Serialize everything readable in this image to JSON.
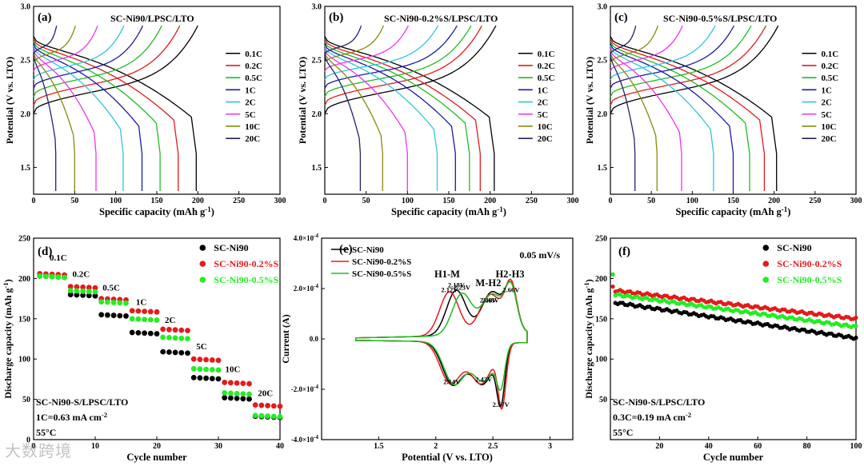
{
  "watermark": "大数跨境",
  "chart_data": [
    {
      "type": "line",
      "panel": "(a)",
      "title": "SC-Ni90/LPSC/LTO",
      "xlabel": "Specific capacity (mAh g-1)",
      "ylabel": "Potential (V vs. LTO)",
      "xlim": [
        0,
        300
      ],
      "ylim": [
        1.25,
        3.0
      ],
      "xticks": [
        0,
        50,
        100,
        150,
        200,
        250,
        300
      ],
      "yticks": [
        1.5,
        2.0,
        2.5,
        3.0
      ],
      "legend_position": "right",
      "series": [
        {
          "name": "0.1C",
          "color": "#000000",
          "charge_capacity": 200,
          "discharge_capacity": 198
        },
        {
          "name": "0.2C",
          "color": "#e41a1c",
          "charge_capacity": 178,
          "discharge_capacity": 176
        },
        {
          "name": "0.5C",
          "color": "#22bb22",
          "charge_capacity": 156,
          "discharge_capacity": 154
        },
        {
          "name": "1C",
          "color": "#1a1aa6",
          "charge_capacity": 133,
          "discharge_capacity": 132
        },
        {
          "name": "2C",
          "color": "#33c4dd",
          "charge_capacity": 110,
          "discharge_capacity": 109
        },
        {
          "name": "5C",
          "color": "#ee33ee",
          "charge_capacity": 78,
          "discharge_capacity": 76
        },
        {
          "name": "10C",
          "color": "#888811",
          "charge_capacity": 51,
          "discharge_capacity": 50
        },
        {
          "name": "20C",
          "color": "#22226b",
          "charge_capacity": 28,
          "discharge_capacity": 27
        }
      ]
    },
    {
      "type": "line",
      "panel": "(b)",
      "title": "SC-Ni90-0.2%S/LPSC/LTO",
      "xlabel": "Specific capacity (mAh g-1)",
      "ylabel": "Potential (V vs. LTO)",
      "xlim": [
        0,
        300
      ],
      "ylim": [
        1.25,
        3.0
      ],
      "xticks": [
        0,
        50,
        100,
        150,
        200,
        250,
        300
      ],
      "yticks": [
        1.5,
        2.0,
        2.5,
        3.0
      ],
      "legend_position": "right",
      "series": [
        {
          "name": "0.1C",
          "color": "#000000",
          "charge_capacity": 207,
          "discharge_capacity": 205
        },
        {
          "name": "0.2C",
          "color": "#e41a1c",
          "charge_capacity": 190,
          "discharge_capacity": 188
        },
        {
          "name": "0.5C",
          "color": "#22bb22",
          "charge_capacity": 177,
          "discharge_capacity": 175
        },
        {
          "name": "1C",
          "color": "#1a1aa6",
          "charge_capacity": 160,
          "discharge_capacity": 158
        },
        {
          "name": "2C",
          "color": "#33c4dd",
          "charge_capacity": 137,
          "discharge_capacity": 136
        },
        {
          "name": "5C",
          "color": "#ee33ee",
          "charge_capacity": 101,
          "discharge_capacity": 100
        },
        {
          "name": "10C",
          "color": "#888811",
          "charge_capacity": 71,
          "discharge_capacity": 70
        },
        {
          "name": "20C",
          "color": "#22226b",
          "charge_capacity": 44,
          "discharge_capacity": 43
        }
      ]
    },
    {
      "type": "line",
      "panel": "(c)",
      "title": "SC-Ni90-0.5%S/LPSC/LTO",
      "xlabel": "Specific capacity (mAh g-1)",
      "ylabel": "Potential (V vs. LTO)",
      "xlim": [
        0,
        300
      ],
      "ylim": [
        1.25,
        3.0
      ],
      "xticks": [
        0,
        50,
        100,
        150,
        200,
        250,
        300
      ],
      "yticks": [
        1.5,
        2.0,
        2.5,
        3.0
      ],
      "legend_position": "right",
      "series": [
        {
          "name": "0.1C",
          "color": "#000000",
          "charge_capacity": 205,
          "discharge_capacity": 203
        },
        {
          "name": "0.2C",
          "color": "#e41a1c",
          "charge_capacity": 190,
          "discharge_capacity": 188
        },
        {
          "name": "0.5C",
          "color": "#22bb22",
          "charge_capacity": 172,
          "discharge_capacity": 170
        },
        {
          "name": "1C",
          "color": "#1a1aa6",
          "charge_capacity": 151,
          "discharge_capacity": 150
        },
        {
          "name": "2C",
          "color": "#33c4dd",
          "charge_capacity": 128,
          "discharge_capacity": 126
        },
        {
          "name": "5C",
          "color": "#ee33ee",
          "charge_capacity": 88,
          "discharge_capacity": 87
        },
        {
          "name": "10C",
          "color": "#888811",
          "charge_capacity": 58,
          "discharge_capacity": 57
        },
        {
          "name": "20C",
          "color": "#22226b",
          "charge_capacity": 31,
          "discharge_capacity": 30
        }
      ]
    },
    {
      "type": "scatter",
      "panel": "(d)",
      "xlabel": "Cycle number",
      "ylabel": "Discharge capacity (mAh g-1)",
      "xlim": [
        0,
        40
      ],
      "ylim": [
        0,
        250
      ],
      "xticks": [
        0,
        10,
        20,
        30,
        40
      ],
      "yticks": [
        0,
        50,
        100,
        150,
        200,
        250
      ],
      "legend_position": "top-right",
      "rate_labels": [
        {
          "text": "0.1C",
          "x": 2.6,
          "y": 222
        },
        {
          "text": "0.2C",
          "x": 6.3,
          "y": 202
        },
        {
          "text": "0.5C",
          "x": 11.2,
          "y": 185
        },
        {
          "text": "1C",
          "x": 16.6,
          "y": 167
        },
        {
          "text": "2C",
          "x": 21.3,
          "y": 145
        },
        {
          "text": "5C",
          "x": 26.4,
          "y": 112
        },
        {
          "text": "10C",
          "x": 31.1,
          "y": 84
        },
        {
          "text": "20C",
          "x": 36.4,
          "y": 54
        }
      ],
      "annotation": [
        "SC-Ni90-S/LPSC/LTO",
        "1C=0.63 mA cm-2",
        "55°C"
      ],
      "series": [
        {
          "name": "SC-Ni90",
          "color": "#000000",
          "marker": "circle",
          "steps": [
            [
              1,
              5,
              203
            ],
            [
              6,
              10,
              180
            ],
            [
              11,
              15,
              155
            ],
            [
              16,
              20,
              133
            ],
            [
              21,
              25,
              109
            ],
            [
              26,
              30,
              77
            ],
            [
              31,
              35,
              52
            ],
            [
              36,
              40,
              29
            ]
          ]
        },
        {
          "name": "SC-Ni90-0.2%S",
          "color": "#e41a1c",
          "marker": "circle",
          "steps": [
            [
              1,
              5,
              206
            ],
            [
              6,
              10,
              190
            ],
            [
              11,
              15,
              175
            ],
            [
              16,
              20,
              160
            ],
            [
              21,
              25,
              137
            ],
            [
              26,
              30,
              100
            ],
            [
              31,
              35,
              71
            ],
            [
              36,
              40,
              43
            ]
          ]
        },
        {
          "name": "SC-Ni90-0.5%S",
          "color": "#22ee22",
          "marker": "circle",
          "steps": [
            [
              1,
              5,
              203
            ],
            [
              6,
              10,
              185
            ],
            [
              11,
              15,
              171
            ],
            [
              16,
              20,
              150
            ],
            [
              21,
              25,
              127
            ],
            [
              26,
              30,
              88
            ],
            [
              31,
              35,
              58
            ],
            [
              36,
              40,
              30
            ]
          ]
        }
      ]
    },
    {
      "type": "line",
      "panel": "(e)",
      "xlabel": "Potential (V vs. LTO)",
      "ylabel": "Current (A)",
      "xlim": [
        1.0,
        3.2
      ],
      "ylim": [
        -0.0004,
        0.0004
      ],
      "xticks": [
        1.5,
        2.0,
        2.5,
        3.0
      ],
      "yticks": [
        -0.0004,
        -0.0002,
        0.0,
        0.0002,
        0.0004
      ],
      "ytick_labels": [
        "-4.0x10-4",
        "-2.0x10-4",
        "0.0",
        "2.0x10-4",
        "4.0x10-4"
      ],
      "scan_rate": "0.05 mV/s",
      "legend_position": "top-left",
      "phase_labels": [
        {
          "text": "H1-M",
          "x": 2.1,
          "y": 0.000245
        },
        {
          "text": "M-H2",
          "x": 2.46,
          "y": 0.00021
        },
        {
          "text": "H2-H3",
          "x": 2.65,
          "y": 0.000245
        }
      ],
      "peak_labels": [
        {
          "text": "2.12V",
          "x": 2.12,
          "y": 0.000185
        },
        {
          "text": "2.18V",
          "x": 2.18,
          "y": 0.000205
        },
        {
          "text": "2.23V",
          "x": 2.23,
          "y": 0.000195
        },
        {
          "text": "2.46V",
          "x": 2.46,
          "y": 0.000145
        },
        {
          "text": "2.48V",
          "x": 2.48,
          "y": 0.000145
        },
        {
          "text": "2.66V",
          "x": 2.66,
          "y": 0.000185
        },
        {
          "text": "2.14V",
          "x": 2.14,
          "y": -0.00018
        },
        {
          "text": "2.42V",
          "x": 2.42,
          "y": -0.00017
        },
        {
          "text": "2.57V",
          "x": 2.57,
          "y": -0.00027
        }
      ],
      "series": [
        {
          "name": "SC-Ni90",
          "color": "#000000",
          "anodic_peaks": [
            [
              2.18,
              0.00018
            ],
            [
              2.48,
              0.00011
            ],
            [
              2.66,
              0.00015
            ]
          ],
          "cathodic_peaks": [
            [
              2.14,
              -0.00014
            ],
            [
              2.42,
              -0.000125
            ],
            [
              2.57,
              -0.00022
            ]
          ]
        },
        {
          "name": "SC-Ni90-0.2%S",
          "color": "#e41a1c",
          "anodic_peaks": [
            [
              2.12,
              0.000175
            ],
            [
              2.46,
              0.000105
            ],
            [
              2.66,
              0.000165
            ]
          ],
          "cathodic_peaks": [
            [
              2.12,
              -0.00014
            ],
            [
              2.41,
              -0.00012
            ],
            [
              2.58,
              -0.00024
            ]
          ]
        },
        {
          "name": "SC-Ni90-0.5%S",
          "color": "#22bb22",
          "anodic_peaks": [
            [
              2.23,
              0.000165
            ],
            [
              2.48,
              0.0001
            ],
            [
              2.66,
              0.00015
            ]
          ],
          "cathodic_peaks": [
            [
              2.15,
              -0.000135
            ],
            [
              2.43,
              -0.000115
            ],
            [
              2.57,
              -0.00015
            ]
          ]
        }
      ]
    },
    {
      "type": "scatter",
      "panel": "(f)",
      "xlabel": "Cycle number",
      "ylabel": "Discharge capacity (mAh g-1)",
      "xlim": [
        0,
        100
      ],
      "ylim": [
        0,
        250
      ],
      "xticks": [
        20,
        40,
        60,
        80,
        100
      ],
      "yticks": [
        50,
        100,
        150,
        200,
        250
      ],
      "legend_position": "top-right",
      "annotation": [
        "SC-Ni90-S/LPSC/LTO",
        "0.3C=0.19 mA cm-2",
        "55°C"
      ],
      "series": [
        {
          "name": "SC-Ni90",
          "color": "#000000",
          "first_cycle": 205,
          "start": 170,
          "end": 126
        },
        {
          "name": "SC-Ni90-0.2%S",
          "color": "#e41a1c",
          "first_cycle": 190,
          "start": 185,
          "end": 150
        },
        {
          "name": "SC-Ni90-0.5%S",
          "color": "#22ee22",
          "first_cycle": 205,
          "start": 180,
          "end": 140
        }
      ]
    }
  ]
}
